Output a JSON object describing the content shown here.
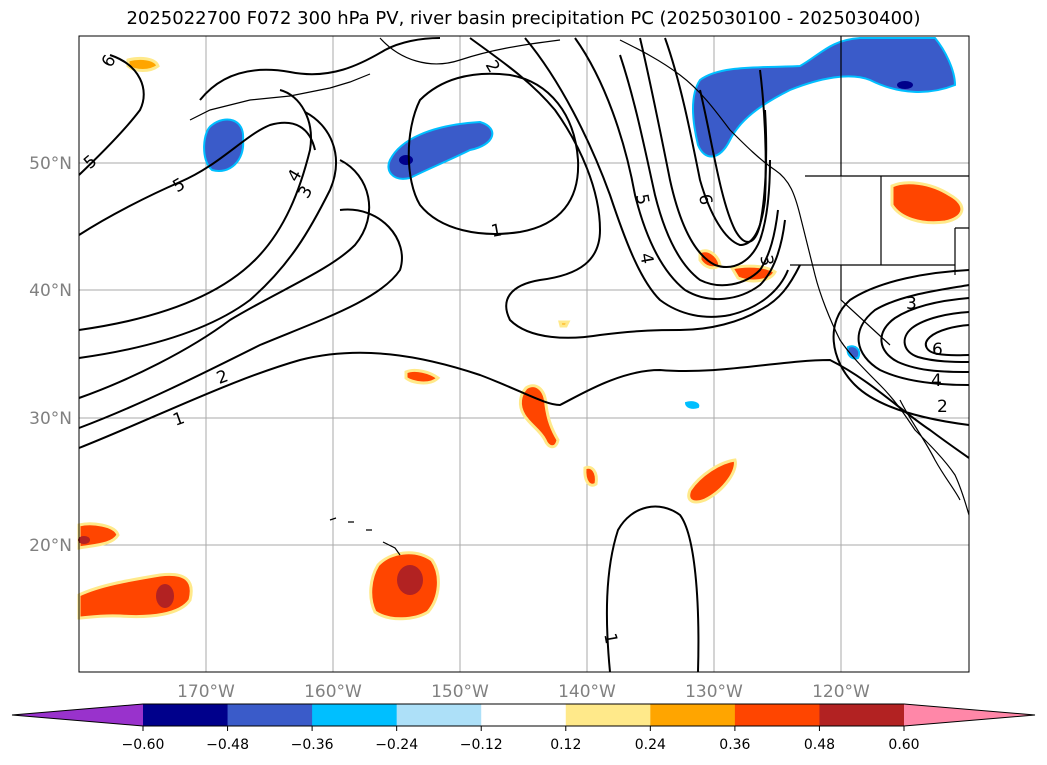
{
  "title": "2025022700 F072 300 hPa PV, river basin precipitation PC (2025030100 - 2025030400)",
  "map": {
    "projection": "PlateCarree",
    "lon_range": [
      -180,
      -110
    ],
    "lat_range": [
      10,
      60
    ],
    "lat_labels": [
      "50°N",
      "40°N",
      "30°N",
      "20°N"
    ],
    "lon_labels": [
      "170°W",
      "160°W",
      "150°W",
      "140°W",
      "130°W",
      "120°W"
    ],
    "grid": true,
    "contour_labels": [
      "6",
      "5",
      "5",
      "4",
      "3",
      "2",
      "1",
      "2",
      "1",
      "5",
      "6",
      "4",
      "3",
      "3",
      "6",
      "4",
      "2",
      "1"
    ]
  },
  "colorbar": {
    "ticks": [
      "−0.60",
      "−0.48",
      "−0.36",
      "−0.24",
      "−0.12",
      "0.12",
      "0.24",
      "0.36",
      "0.48",
      "0.60"
    ],
    "colors": [
      "#9932CC",
      "#00008B",
      "#3A5BC9",
      "#00BFFF",
      "#ADE0F8",
      "#FFFFFF",
      "#FFE98A",
      "#FFA500",
      "#FF4500",
      "#B22222",
      "#FF87A8"
    ],
    "extend": "both"
  }
}
